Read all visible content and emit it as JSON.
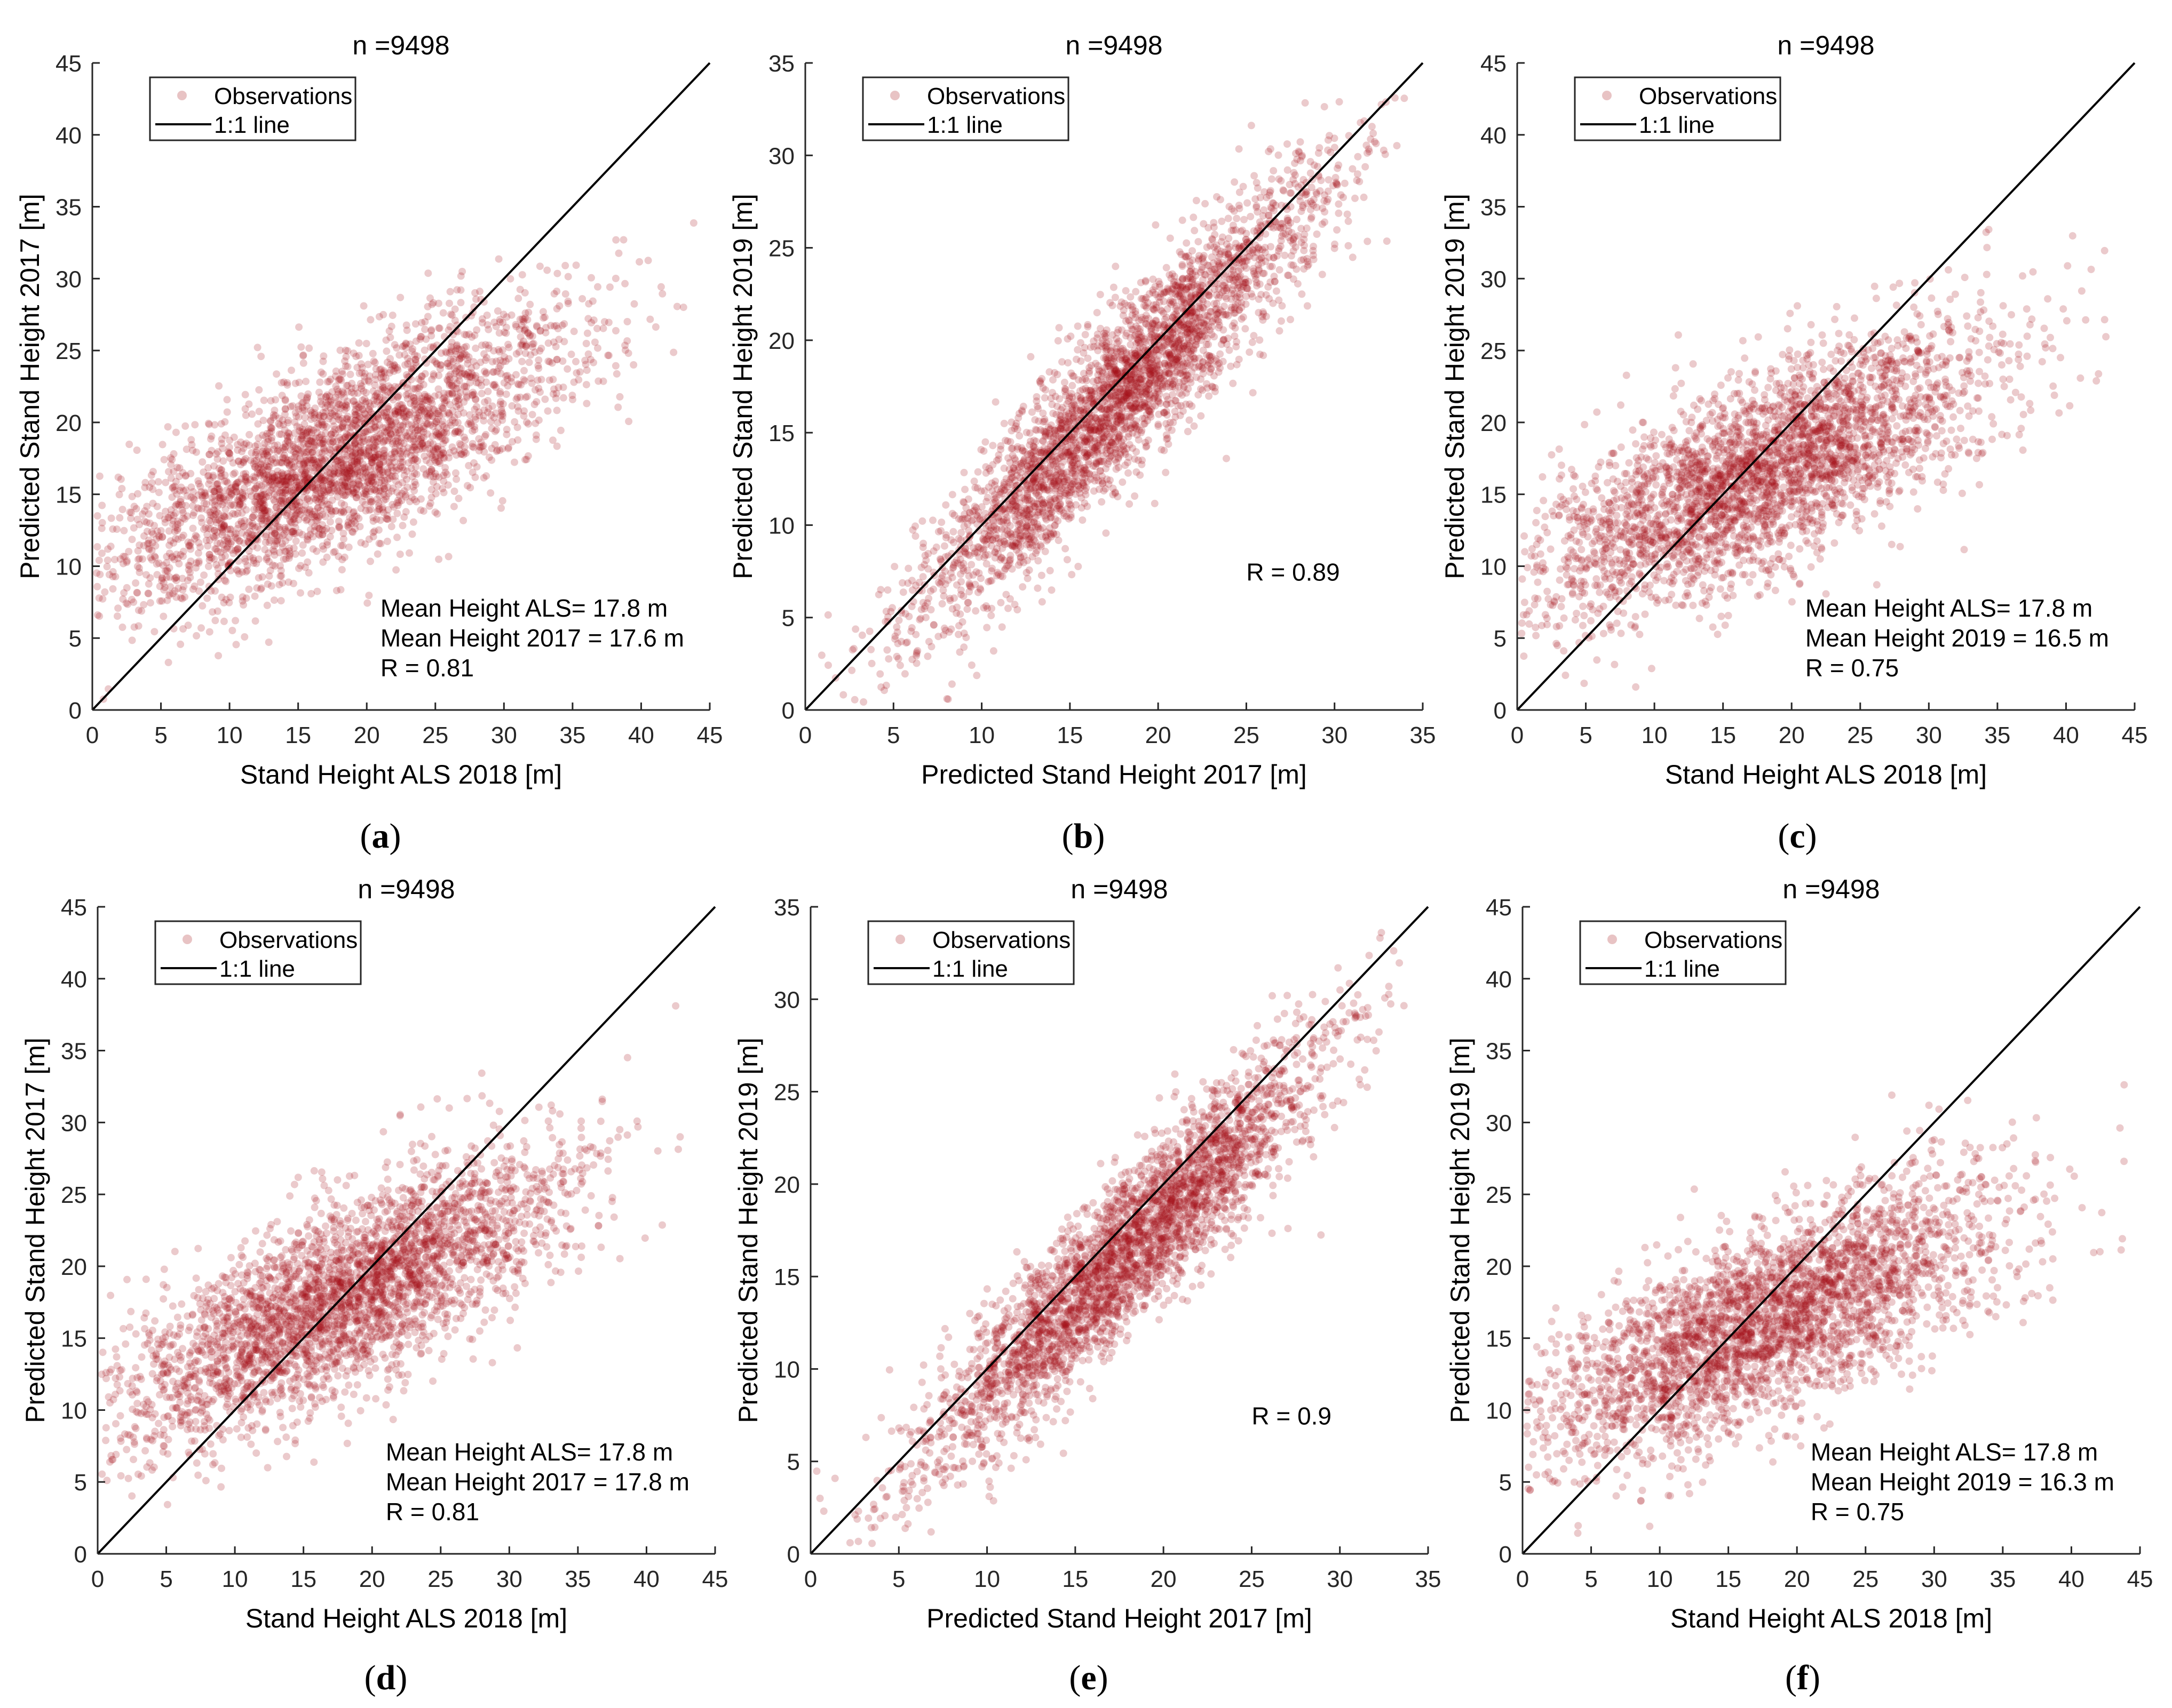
{
  "figure": {
    "marker_color": "#a50f15",
    "line_color": "#000000",
    "legend_labels": {
      "observations": "Observations",
      "line": "1:1 line"
    }
  },
  "chart_data": [
    {
      "type": "scatter",
      "caption": "a",
      "title": "n =9498",
      "xlabel": "Stand Height ALS 2018 [m]",
      "ylabel": "Predicted Stand Height 2017 [m]",
      "xlim": [
        0,
        45
      ],
      "ylim": [
        0,
        45
      ],
      "xticks": [
        "0",
        "5",
        "10",
        "15",
        "20",
        "25",
        "30",
        "35",
        "40",
        "45"
      ],
      "yticks": [
        "0",
        "5",
        "10",
        "15",
        "20",
        "25",
        "30",
        "35",
        "40",
        "45"
      ],
      "series": [
        {
          "name": "Observations"
        },
        {
          "name": "1:1 line"
        }
      ],
      "n": 9498,
      "slope": 0.45,
      "intercept": 9.5,
      "noise": 3.3,
      "x_mean": 17.8,
      "x_sd": 8.5,
      "annotations": [
        "Mean Height ALS= 17.8 m",
        "Mean Height 2017 = 17.6 m",
        "R = 0.81"
      ],
      "annot_pos": [
        21,
        6.5
      ]
    },
    {
      "type": "scatter",
      "caption": "b",
      "title": "n =9498",
      "xlabel": "Predicted Stand Height 2017 [m]",
      "ylabel": "Predicted Stand Height 2019 [m]",
      "xlim": [
        0,
        35
      ],
      "ylim": [
        0,
        35
      ],
      "xticks": [
        "0",
        "5",
        "10",
        "15",
        "20",
        "25",
        "30",
        "35"
      ],
      "yticks": [
        "0",
        "5",
        "10",
        "15",
        "20",
        "25",
        "30",
        "35"
      ],
      "series": [
        {
          "name": "Observations"
        },
        {
          "name": "1:1 line"
        }
      ],
      "n": 9498,
      "slope": 0.98,
      "intercept": -0.6,
      "noise": 2.3,
      "x_mean": 17.6,
      "x_sd": 5.8,
      "annotations": [
        "R = 0.89"
      ],
      "annot_pos": [
        25,
        7
      ]
    },
    {
      "type": "scatter",
      "caption": "c",
      "title": "n =9498",
      "xlabel": "Stand Height ALS 2018 [m]",
      "ylabel": "Predicted Stand Height 2019 [m]",
      "xlim": [
        0,
        45
      ],
      "ylim": [
        0,
        45
      ],
      "xticks": [
        "0",
        "5",
        "10",
        "15",
        "20",
        "25",
        "30",
        "35",
        "40",
        "45"
      ],
      "yticks": [
        "0",
        "5",
        "10",
        "15",
        "20",
        "25",
        "30",
        "35",
        "40",
        "45"
      ],
      "series": [
        {
          "name": "Observations"
        },
        {
          "name": "1:1 line"
        }
      ],
      "n": 9498,
      "slope": 0.42,
      "intercept": 9.0,
      "noise": 3.4,
      "x_mean": 17.8,
      "x_sd": 8.5,
      "annotations": [
        "Mean Height ALS= 17.8 m",
        "Mean Height 2019 = 16.5 m",
        "R = 0.75"
      ],
      "annot_pos": [
        21,
        6.5
      ]
    },
    {
      "type": "scatter",
      "caption": "d",
      "title": "n =9498",
      "xlabel": "Stand Height ALS 2018 [m]",
      "ylabel": "Predicted Stand Height 2017 [m]",
      "xlim": [
        0,
        45
      ],
      "ylim": [
        0,
        45
      ],
      "xticks": [
        "0",
        "5",
        "10",
        "15",
        "20",
        "25",
        "30",
        "35",
        "40",
        "45"
      ],
      "yticks": [
        "0",
        "5",
        "10",
        "15",
        "20",
        "25",
        "30",
        "35",
        "40",
        "45"
      ],
      "series": [
        {
          "name": "Observations"
        },
        {
          "name": "1:1 line"
        }
      ],
      "n": 9498,
      "slope": 0.46,
      "intercept": 9.6,
      "noise": 3.2,
      "x_mean": 17.8,
      "x_sd": 8.5,
      "annotations": [
        "Mean Height ALS= 17.8 m",
        "Mean Height 2017 = 17.8 m",
        "R = 0.81"
      ],
      "annot_pos": [
        21,
        6.5
      ]
    },
    {
      "type": "scatter",
      "caption": "e",
      "title": "n =9498",
      "xlabel": "Predicted Stand Height 2017 [m]",
      "ylabel": "Predicted Stand Height 2019 [m]",
      "xlim": [
        0,
        35
      ],
      "ylim": [
        0,
        35
      ],
      "xticks": [
        "0",
        "5",
        "10",
        "15",
        "20",
        "25",
        "30",
        "35"
      ],
      "yticks": [
        "0",
        "5",
        "10",
        "15",
        "20",
        "25",
        "30",
        "35"
      ],
      "series": [
        {
          "name": "Observations"
        },
        {
          "name": "1:1 line"
        }
      ],
      "n": 9498,
      "slope": 0.93,
      "intercept": -0.3,
      "noise": 2.1,
      "x_mean": 17.8,
      "x_sd": 5.8,
      "annotations": [
        "R = 0.9"
      ],
      "annot_pos": [
        25,
        7
      ]
    },
    {
      "type": "scatter",
      "caption": "f",
      "title": "n =9498",
      "xlabel": "Stand Height ALS 2018 [m]",
      "ylabel": "Predicted Stand Height 2019 [m]",
      "xlim": [
        0,
        45
      ],
      "ylim": [
        0,
        45
      ],
      "xticks": [
        "0",
        "5",
        "10",
        "15",
        "20",
        "25",
        "30",
        "35",
        "40",
        "45"
      ],
      "yticks": [
        "0",
        "5",
        "10",
        "15",
        "20",
        "25",
        "30",
        "35",
        "40",
        "45"
      ],
      "series": [
        {
          "name": "Observations"
        },
        {
          "name": "1:1 line"
        }
      ],
      "n": 9498,
      "slope": 0.41,
      "intercept": 8.9,
      "noise": 3.3,
      "x_mean": 17.8,
      "x_sd": 8.5,
      "annotations": [
        "Mean Height ALS= 17.8 m",
        "Mean Height 2019 = 16.3 m",
        "R = 0.75"
      ],
      "annot_pos": [
        21,
        6.5
      ]
    }
  ]
}
